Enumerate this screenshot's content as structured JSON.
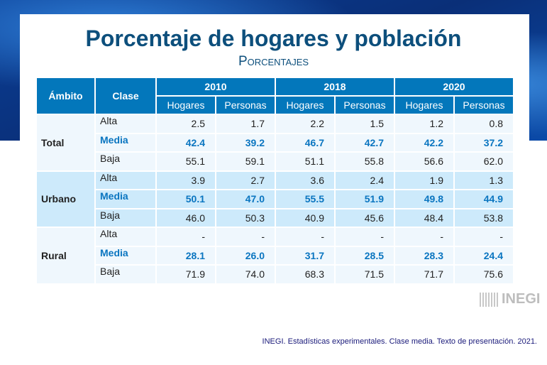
{
  "title": "Porcentaje de hogares y población",
  "subtitle": "Porcentajes",
  "table": {
    "headers": {
      "ambito": "Ámbito",
      "clase": "Clase",
      "years": [
        "2010",
        "2018",
        "2020"
      ],
      "sub": [
        "Hogares",
        "Personas",
        "Hogares",
        "Personas",
        "Hogares",
        "Personas"
      ]
    },
    "groups": [
      {
        "name": "Total",
        "rows": [
          {
            "clase": "Alta",
            "values": [
              "2.5",
              "1.7",
              "2.2",
              "1.5",
              "1.2",
              "0.8"
            ]
          },
          {
            "clase": "Media",
            "values": [
              "42.4",
              "39.2",
              "46.7",
              "42.7",
              "42.2",
              "37.2"
            ]
          },
          {
            "clase": "Baja",
            "values": [
              "55.1",
              "59.1",
              "51.1",
              "55.8",
              "56.6",
              "62.0"
            ]
          }
        ]
      },
      {
        "name": "Urbano",
        "rows": [
          {
            "clase": "Alta",
            "values": [
              "3.9",
              "2.7",
              "3.6",
              "2.4",
              "1.9",
              "1.3"
            ]
          },
          {
            "clase": "Media",
            "values": [
              "50.1",
              "47.0",
              "55.5",
              "51.9",
              "49.8",
              "44.9"
            ]
          },
          {
            "clase": "Baja",
            "values": [
              "46.0",
              "50.3",
              "40.9",
              "45.6",
              "48.4",
              "53.8"
            ]
          }
        ]
      },
      {
        "name": "Rural",
        "rows": [
          {
            "clase": "Alta",
            "values": [
              "-",
              "-",
              "-",
              "-",
              "-",
              "-"
            ]
          },
          {
            "clase": "Media",
            "values": [
              "28.1",
              "26.0",
              "31.7",
              "28.5",
              "28.3",
              "24.4"
            ]
          },
          {
            "clase": "Baja",
            "values": [
              "71.9",
              "74.0",
              "68.3",
              "71.5",
              "71.7",
              "75.6"
            ]
          }
        ]
      }
    ]
  },
  "logo": "INEGI",
  "footer": "INEGI. Estadísticas experimentales. Clase media. Texto de presentación. 2021.",
  "colors": {
    "header": "#0377bb",
    "title": "#0d4f7c",
    "media": "#0a75c0",
    "band_light": "#eff7fd",
    "band_urbano": "#cdeafb"
  }
}
